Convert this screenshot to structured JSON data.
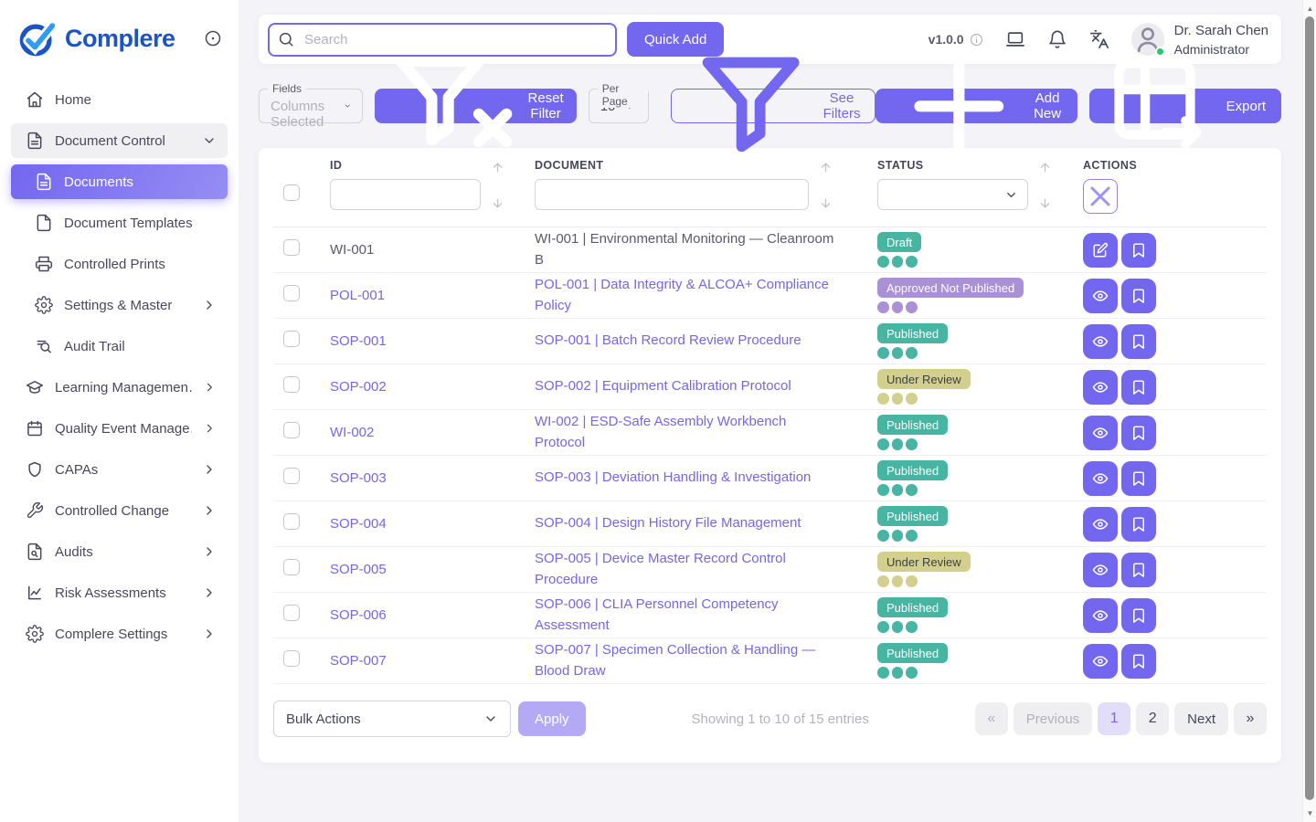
{
  "brand": {
    "name": "Complere",
    "logo_icon": "check-circle-logo",
    "toggle_icon": "circle-dot-icon"
  },
  "colors": {
    "primary": "#7367f0",
    "link": "#7467e8",
    "teal": "#48b5a3",
    "purple": "#aa90d5",
    "khaki": "#d3d08f",
    "online": "#28c76f",
    "logo_blue": "#1b54c6",
    "logo_check": "#2e9bf7"
  },
  "sidebar": {
    "items": [
      {
        "label": "Home",
        "icon": "home-icon",
        "indent": 0,
        "chevron": null,
        "state": "default"
      },
      {
        "label": "Document Control",
        "icon": "document-icon",
        "indent": 0,
        "chevron": "down",
        "state": "expanded"
      },
      {
        "label": "Documents",
        "icon": "document-icon",
        "indent": 1,
        "chevron": null,
        "state": "active"
      },
      {
        "label": "Document Templates",
        "icon": "file-icon",
        "indent": 1,
        "chevron": null,
        "state": "default"
      },
      {
        "label": "Controlled Prints",
        "icon": "printer-icon",
        "indent": 1,
        "chevron": null,
        "state": "default"
      },
      {
        "label": "Settings & Master",
        "icon": "gear-icon",
        "indent": 1,
        "chevron": "right",
        "state": "default"
      },
      {
        "label": "Audit Trail",
        "icon": "list-search-icon",
        "indent": 1,
        "chevron": null,
        "state": "default"
      },
      {
        "label": "Learning Managemen…",
        "icon": "graduation-cap-icon",
        "indent": 0,
        "chevron": "right",
        "state": "default"
      },
      {
        "label": "Quality Event Manage…",
        "icon": "calendar-icon",
        "indent": 0,
        "chevron": "right",
        "state": "default"
      },
      {
        "label": "CAPAs",
        "icon": "shield-icon",
        "indent": 0,
        "chevron": "right",
        "state": "default"
      },
      {
        "label": "Controlled Change",
        "icon": "wrench-icon",
        "indent": 0,
        "chevron": "right",
        "state": "default"
      },
      {
        "label": "Audits",
        "icon": "file-search-icon",
        "indent": 0,
        "chevron": "right",
        "state": "default"
      },
      {
        "label": "Risk Assessments",
        "icon": "risk-chart-icon",
        "indent": 0,
        "chevron": "right",
        "state": "default"
      },
      {
        "label": "Complere Settings",
        "icon": "gear-icon",
        "indent": 0,
        "chevron": "right",
        "state": "default"
      }
    ]
  },
  "header": {
    "search_placeholder": "Search",
    "quick_add_label": "Quick Add",
    "version": "v1.0.0",
    "version_info_icon": "info-icon",
    "icons": [
      "laptop-icon",
      "bell-icon",
      "translate-icon"
    ],
    "user": {
      "name": "Dr. Sarah Chen",
      "role": "Administrator",
      "status": "online"
    }
  },
  "filterbar": {
    "fields_label": "Fields",
    "fields_value": "4 Columns Selected",
    "reset_filter_label": "Reset Filter",
    "per_page_label": "Per Page",
    "per_page_value": "10",
    "see_filters_label": "See Filters",
    "add_new_label": "Add New",
    "export_label": "Export"
  },
  "table": {
    "columns": [
      "ID",
      "DOCUMENT",
      "STATUS",
      "ACTIONS"
    ],
    "filters": {
      "id_value": "",
      "document_value": "",
      "status_value": ""
    },
    "rows": [
      {
        "id": "WI-001",
        "title": "WI-001 | Environmental Monitoring — Cleanroom B",
        "status": "Draft",
        "variant": "teal",
        "link": false,
        "action": "edit"
      },
      {
        "id": "POL-001",
        "title": "POL-001 | Data Integrity & ALCOA+ Compliance Policy",
        "status": "Approved Not Published",
        "variant": "purple",
        "link": true,
        "action": "view"
      },
      {
        "id": "SOP-001",
        "title": "SOP-001 | Batch Record Review Procedure",
        "status": "Published",
        "variant": "teal",
        "link": true,
        "action": "view"
      },
      {
        "id": "SOP-002",
        "title": "SOP-002 | Equipment Calibration Protocol",
        "status": "Under Review",
        "variant": "khaki",
        "link": true,
        "action": "view"
      },
      {
        "id": "WI-002",
        "title": "WI-002 | ESD-Safe Assembly Workbench Protocol",
        "status": "Published",
        "variant": "teal",
        "link": true,
        "action": "view"
      },
      {
        "id": "SOP-003",
        "title": "SOP-003 | Deviation Handling & Investigation",
        "status": "Published",
        "variant": "teal",
        "link": true,
        "action": "view"
      },
      {
        "id": "SOP-004",
        "title": "SOP-004 | Design History File Management",
        "status": "Published",
        "variant": "teal",
        "link": true,
        "action": "view"
      },
      {
        "id": "SOP-005",
        "title": "SOP-005 | Device Master Record Control Procedure",
        "status": "Under Review",
        "variant": "khaki",
        "link": true,
        "action": "view"
      },
      {
        "id": "SOP-006",
        "title": "SOP-006 | CLIA Personnel Competency Assessment",
        "status": "Published",
        "variant": "teal",
        "link": true,
        "action": "view"
      },
      {
        "id": "SOP-007",
        "title": "SOP-007 | Specimen Collection & Handling — Blood Draw",
        "status": "Published",
        "variant": "teal",
        "link": true,
        "action": "view"
      }
    ]
  },
  "footer": {
    "bulk_actions_value": "Bulk Actions",
    "apply_label": "Apply",
    "showing_text": "Showing 1 to 10 of 15 entries",
    "pagination": [
      {
        "label": "«",
        "type": "first",
        "state": "disabled"
      },
      {
        "label": "Previous",
        "type": "previous",
        "state": "disabled"
      },
      {
        "label": "1",
        "type": "page",
        "state": "active"
      },
      {
        "label": "2",
        "type": "page",
        "state": "default"
      },
      {
        "label": "Next",
        "type": "next",
        "state": "default"
      },
      {
        "label": "»",
        "type": "last",
        "state": "default"
      }
    ]
  }
}
